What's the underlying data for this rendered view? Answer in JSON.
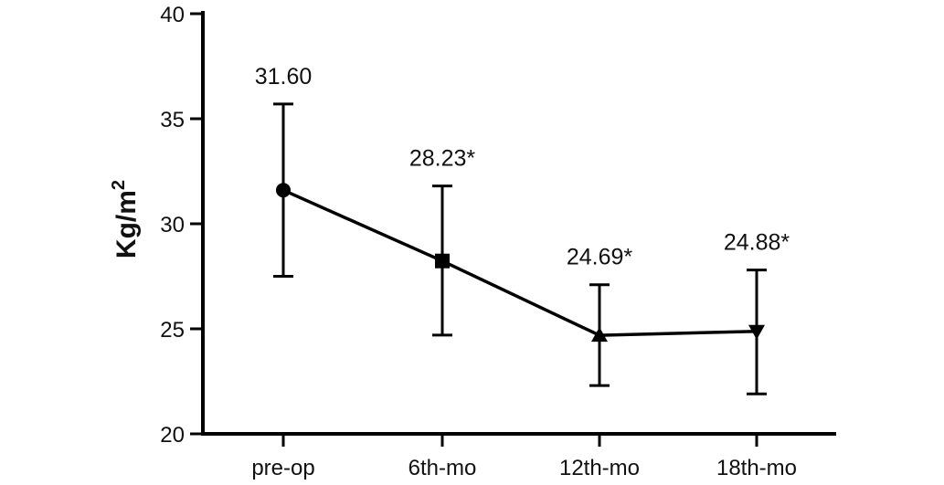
{
  "chart_data": {
    "type": "line",
    "title": "",
    "xlabel": "",
    "ylabel": "Kg/m",
    "ylabel_superscript": "2",
    "ylim": [
      20,
      40
    ],
    "yticks": [
      "20",
      "25",
      "30",
      "35",
      "40"
    ],
    "categories": [
      "pre-op",
      "6th-mo",
      "12th-mo",
      "18th-mo"
    ],
    "series": [
      {
        "values": [
          31.6,
          28.23,
          24.69,
          24.88
        ],
        "error_upper": [
          35.7,
          31.8,
          27.1,
          27.8
        ],
        "error_lower": [
          27.5,
          24.7,
          22.3,
          21.9
        ],
        "markers": [
          "circle",
          "square",
          "triangle-up",
          "triangle-down"
        ],
        "labels": [
          "31.60",
          "28.23*",
          "24.69*",
          "24.88*"
        ],
        "color": "#000000"
      }
    ],
    "grid": false,
    "legend": "none"
  }
}
